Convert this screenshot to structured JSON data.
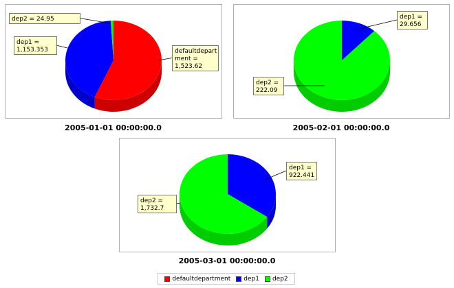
{
  "colors": {
    "defaultdepartment": "#ff0000",
    "dep1": "#0000ff",
    "dep2": "#00ff00",
    "label_bg": "#ffffcc",
    "plot_border": "#b0b0b0"
  },
  "chart_data": [
    {
      "type": "pie",
      "title": "2005-01-01 00:00:00.0",
      "slices": [
        {
          "name": "defaultdepartment",
          "value": 1523.62,
          "label": [
            "defaultdepart",
            "ment =",
            "1,523.62"
          ]
        },
        {
          "name": "dep1",
          "value": 1153.353,
          "label": [
            "dep1 =",
            "1,153.353"
          ]
        },
        {
          "name": "dep2",
          "value": 24.95,
          "label": [
            "dep2 = 24.95"
          ]
        }
      ]
    },
    {
      "type": "pie",
      "title": "2005-02-01 00:00:00.0",
      "slices": [
        {
          "name": "dep1",
          "value": 29.656,
          "label": [
            "dep1 =",
            "29.656"
          ]
        },
        {
          "name": "dep2",
          "value": 222.09,
          "label": [
            "dep2 =",
            "222.09"
          ]
        }
      ]
    },
    {
      "type": "pie",
      "title": "2005-03-01 00:00:00.0",
      "slices": [
        {
          "name": "dep1",
          "value": 922.441,
          "label": [
            "dep1 =",
            "922.441"
          ]
        },
        {
          "name": "dep2",
          "value": 1732.7,
          "label": [
            "dep2 =",
            "1,732.7"
          ]
        }
      ]
    }
  ],
  "legend": [
    {
      "key": "defaultdepartment",
      "label": "defaultdepartment"
    },
    {
      "key": "dep1",
      "label": "dep1"
    },
    {
      "key": "dep2",
      "label": "dep2"
    }
  ]
}
